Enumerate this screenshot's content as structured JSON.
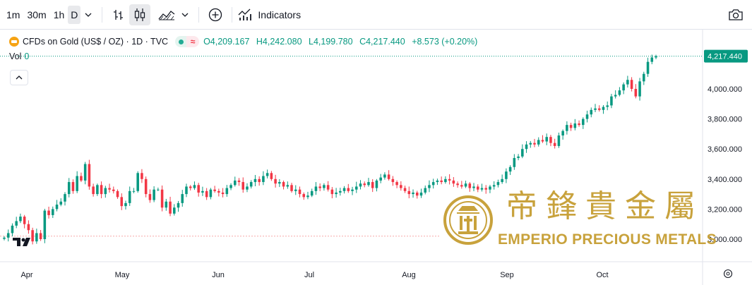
{
  "toolbar": {
    "timeframes": [
      "1m",
      "30m",
      "1h",
      "D"
    ],
    "active_timeframe": "D",
    "indicators_label": "Indicators",
    "icons": [
      "chevron-down-icon",
      "bar-chart-icon",
      "candles-icon",
      "area-chart-icon",
      "chevron-down-icon",
      "add-compare-icon",
      "indicators-icon",
      "camera-icon"
    ]
  },
  "legend": {
    "title": "CFDs on Gold (US$ / OZ) · 1D · TVC",
    "open_label": "O",
    "open": "4,209.167",
    "high_label": "H",
    "high": "4,242.080",
    "low_label": "L",
    "low": "4,199.780",
    "close_label": "C",
    "close": "4,217.440",
    "change": "+8.573 (+0.20%)",
    "vol_label": "Vol",
    "vol_value": "0"
  },
  "colors": {
    "up": "#089981",
    "down": "#f23645",
    "accent": "#22ab94",
    "watermark": "#c8a23c"
  },
  "watermark": {
    "chinese": "帝鋒貴金屬",
    "english": "EMPERIO PRECIOUS METALS"
  },
  "chart_data": {
    "type": "candlestick",
    "symbol": "CFDs on Gold (US$ / OZ)",
    "interval": "1D",
    "x_labels": [
      "Apr",
      "May",
      "Jun",
      "Jul",
      "Aug",
      "Sep",
      "Oct"
    ],
    "y_ticks": [
      "3,000.000",
      "3,200.000",
      "3,400.000",
      "3,600.000",
      "3,800.000",
      "4,000.000"
    ],
    "y_range": [
      2930,
      4260
    ],
    "last_price_label": "4,217.440",
    "last_price": 4217.44,
    "baseline_value": 3020,
    "closes": [
      3010,
      3040,
      3090,
      3120,
      3150,
      3100,
      3060,
      2985,
      3040,
      3000,
      3190,
      3160,
      3200,
      3230,
      3250,
      3300,
      3380,
      3320,
      3420,
      3390,
      3500,
      3350,
      3300,
      3360,
      3300,
      3340,
      3330,
      3320,
      3280,
      3220,
      3240,
      3320,
      3320,
      3440,
      3400,
      3300,
      3260,
      3330,
      3330,
      3210,
      3250,
      3170,
      3210,
      3240,
      3300,
      3350,
      3340,
      3360,
      3310,
      3320,
      3280,
      3330,
      3320,
      3310,
      3300,
      3340,
      3360,
      3390,
      3380,
      3330,
      3350,
      3380,
      3400,
      3380,
      3420,
      3440,
      3400,
      3370,
      3380,
      3350,
      3360,
      3320,
      3330,
      3300,
      3280,
      3290,
      3320,
      3350,
      3340,
      3360,
      3330,
      3300,
      3310,
      3320,
      3340,
      3320,
      3330,
      3350,
      3370,
      3360,
      3380,
      3340,
      3390,
      3410,
      3430,
      3400,
      3380,
      3360,
      3340,
      3320,
      3300,
      3310,
      3290,
      3310,
      3340,
      3360,
      3380,
      3390,
      3380,
      3400,
      3390,
      3370,
      3360,
      3350,
      3370,
      3340,
      3350,
      3330,
      3340,
      3330,
      3350,
      3360,
      3380,
      3400,
      3450,
      3480,
      3540,
      3550,
      3600,
      3630,
      3640,
      3630,
      3660,
      3650,
      3680,
      3640,
      3620,
      3690,
      3720,
      3760,
      3740,
      3770,
      3760,
      3800,
      3830,
      3860,
      3870,
      3860,
      3880,
      3890,
      3950,
      3960,
      3990,
      4030,
      4060,
      4000,
      3950,
      4050,
      4100,
      4180,
      4209,
      4217
    ]
  }
}
